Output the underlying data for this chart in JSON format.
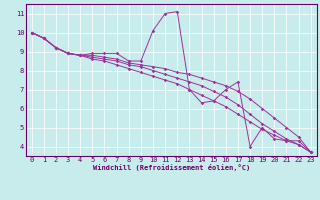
{
  "xlabel": "Windchill (Refroidissement éolien,°C)",
  "bg_color": "#c8ecec",
  "line_color": "#993399",
  "grid_color": "#ffffff",
  "axis_color": "#660066",
  "xlim": [
    -0.5,
    23.5
  ],
  "ylim": [
    3.5,
    11.5
  ],
  "xticks": [
    0,
    1,
    2,
    3,
    4,
    5,
    6,
    7,
    8,
    9,
    10,
    11,
    12,
    13,
    14,
    15,
    16,
    17,
    18,
    19,
    20,
    21,
    22,
    23
  ],
  "yticks": [
    4,
    5,
    6,
    7,
    8,
    9,
    10,
    11
  ],
  "series": [
    [
      10.0,
      9.7,
      9.2,
      8.9,
      8.8,
      8.9,
      8.9,
      8.9,
      8.5,
      8.5,
      10.1,
      11.0,
      11.1,
      7.0,
      6.3,
      6.4,
      7.0,
      7.4,
      4.0,
      5.0,
      4.4,
      4.3,
      4.3,
      3.7
    ],
    [
      10.0,
      9.7,
      9.2,
      8.9,
      8.8,
      8.8,
      8.7,
      8.6,
      8.4,
      8.3,
      8.2,
      8.1,
      7.9,
      7.8,
      7.6,
      7.4,
      7.2,
      6.9,
      6.5,
      6.0,
      5.5,
      5.0,
      4.5,
      3.7
    ],
    [
      10.0,
      9.7,
      9.2,
      8.9,
      8.8,
      8.7,
      8.6,
      8.5,
      8.3,
      8.2,
      8.0,
      7.8,
      7.6,
      7.4,
      7.2,
      6.9,
      6.6,
      6.2,
      5.7,
      5.2,
      4.8,
      4.4,
      4.1,
      3.7
    ],
    [
      10.0,
      9.7,
      9.2,
      8.9,
      8.8,
      8.6,
      8.5,
      8.3,
      8.1,
      7.9,
      7.7,
      7.5,
      7.3,
      7.0,
      6.7,
      6.4,
      6.1,
      5.7,
      5.3,
      4.9,
      4.6,
      4.3,
      4.1,
      3.7
    ]
  ]
}
